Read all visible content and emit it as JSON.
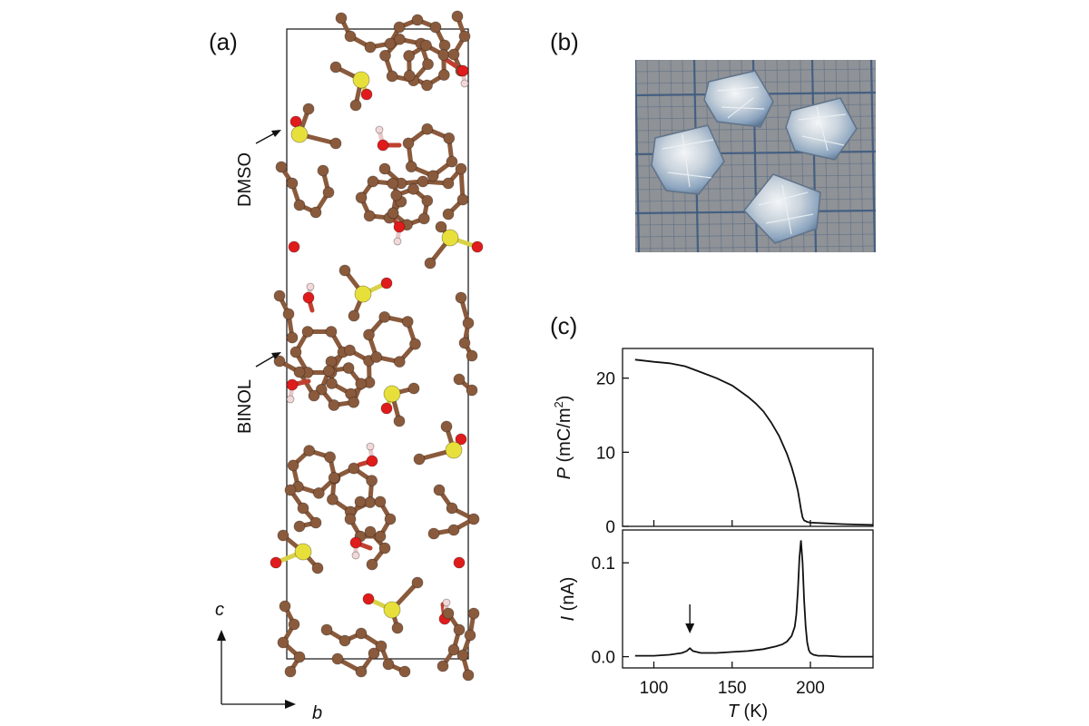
{
  "figure": {
    "panels": {
      "a": "(a)",
      "b": "(b)",
      "c": "(c)"
    },
    "structure": {
      "labels": {
        "dmso": "DMSO",
        "binol": "BINOL"
      },
      "axes": {
        "vertical": "c",
        "horizontal": "b"
      },
      "atom_colors": {
        "carbon": "#8a5a3c",
        "sulfur": "#e8e03a",
        "oxygen": "#e01b1b",
        "hydrogen": "#f2d8d8"
      }
    },
    "photo": {
      "background": "#8f9296",
      "grid_color": "#3d5a80",
      "crystal_count": 4
    }
  },
  "chart_data": [
    {
      "type": "line",
      "panel": "c-top",
      "ylabel_symbol": "P",
      "ylabel_unit": "(mC/m",
      "ylabel_sup": "2",
      "ylabel_close": ")",
      "xlim": [
        80,
        240
      ],
      "ylim": [
        0,
        24
      ],
      "yticks": [
        "0",
        "10",
        "20"
      ],
      "ytick_values": [
        0,
        10,
        20
      ],
      "series": [
        {
          "x": [
            88,
            100,
            110,
            120,
            130,
            140,
            150,
            160,
            165,
            170,
            175,
            180,
            185,
            188,
            190,
            192,
            193,
            194,
            195,
            196,
            198,
            200,
            210,
            220,
            230,
            240
          ],
          "y": [
            22.5,
            22.2,
            22.0,
            21.6,
            20.8,
            20.0,
            19.0,
            17.5,
            16.6,
            15.5,
            14.0,
            12.2,
            9.8,
            8.0,
            6.5,
            4.8,
            3.6,
            2.3,
            1.2,
            0.8,
            0.6,
            0.5,
            0.4,
            0.3,
            0.25,
            0.2
          ],
          "color": "#111111"
        }
      ]
    },
    {
      "type": "line",
      "panel": "c-bottom",
      "ylabel_symbol": "I",
      "ylabel_unit": "(nA)",
      "xlabel_symbol": "T",
      "xlabel_unit": "(K)",
      "xlim": [
        80,
        240
      ],
      "ylim": [
        -0.012,
        0.135
      ],
      "xticks": [
        "100",
        "150",
        "200"
      ],
      "xtick_values": [
        100,
        150,
        200
      ],
      "yticks": [
        "0.0",
        "0.1"
      ],
      "ytick_values": [
        0.0,
        0.1
      ],
      "annotation_arrow_x": 123,
      "series": [
        {
          "x": [
            88,
            100,
            110,
            118,
            121,
            123,
            125,
            130,
            140,
            150,
            160,
            170,
            178,
            182,
            185,
            188,
            190,
            191,
            192,
            193,
            194,
            195,
            196,
            197,
            198,
            199,
            200,
            202,
            205,
            210,
            220,
            230,
            240
          ],
          "y": [
            0.001,
            0.001,
            0.002,
            0.004,
            0.006,
            0.009,
            0.006,
            0.004,
            0.004,
            0.005,
            0.006,
            0.008,
            0.011,
            0.013,
            0.016,
            0.022,
            0.032,
            0.045,
            0.07,
            0.105,
            0.124,
            0.1,
            0.06,
            0.032,
            0.015,
            0.007,
            0.004,
            0.002,
            0.001,
            0.001,
            0.0,
            0.0,
            0.0
          ],
          "color": "#111111"
        }
      ]
    }
  ]
}
